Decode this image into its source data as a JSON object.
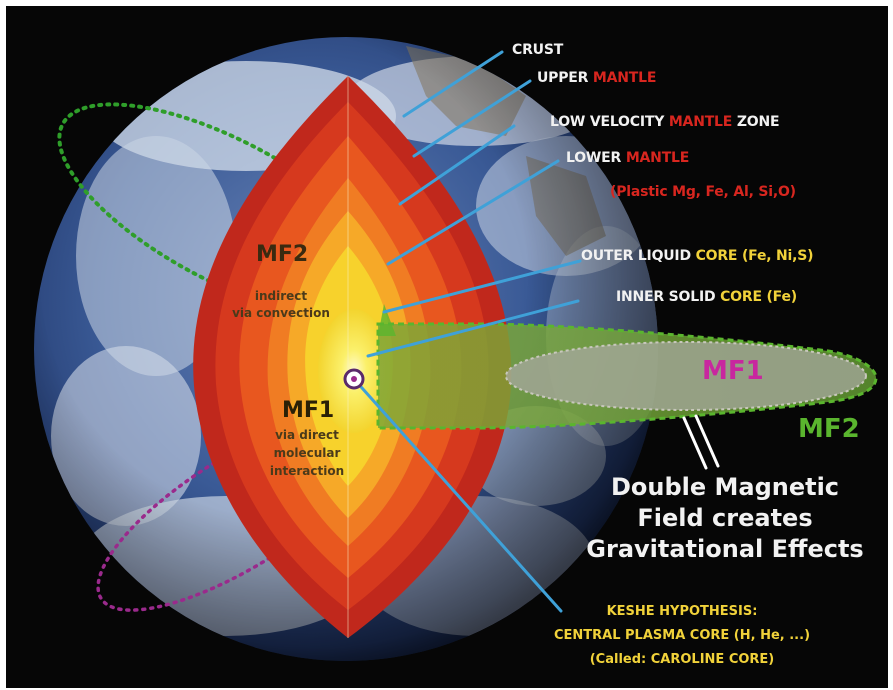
{
  "labels": {
    "crust": "CRUST",
    "upper_mantle_a": "UPPER",
    "upper_mantle_b": "MANTLE",
    "low_velocity_a": "LOW VELOCITY",
    "low_velocity_b": "MANTLE",
    "low_velocity_c": "ZONE",
    "lower_mantle_a": "LOWER",
    "lower_mantle_b": "MANTLE",
    "lower_mantle_composition": "(Plastic Mg, Fe, Al, Si,O)",
    "outer_core_a": "OUTER LIQUID",
    "outer_core_b": "CORE (Fe, Ni,S)",
    "inner_core_a": "INNER SOLID",
    "inner_core_b": "CORE (Fe)"
  },
  "fields": {
    "mf1_ellipse": "MF1",
    "mf2_ellipse": "MF2",
    "mf2_title": "MF2",
    "mf2_line1": "indirect",
    "mf2_line2": "via convection",
    "mf1_title": "MF1",
    "mf1_line1": "via direct",
    "mf1_line2": "molecular",
    "mf1_line3": "interaction"
  },
  "caption": {
    "line1": "Double Magnetic",
    "line2": "Field creates",
    "line3": "Gravitational Effects"
  },
  "hypothesis": {
    "line1": "KESHE HYPOTHESIS:",
    "line2": "CENTRAL PLASMA CORE (H, He, ...)",
    "line3": "(Called: CAROLINE CORE)"
  },
  "colors": {
    "background": "#060606",
    "ocean": "#2c4a86",
    "crust": "#c0281c",
    "mantle": "#e8571f",
    "outer_core": "#f6a928",
    "inner_core": "#f7ea2e",
    "leader_line": "#3fa1d8",
    "mf1_text": "#c8279f",
    "mf2_green": "#5ab52e",
    "field_dots_green": "#2f9e2a",
    "field_dots_magenta": "#9a2a8c",
    "highlight_red": "#d8261f",
    "highlight_yellow": "#f1d23a"
  }
}
